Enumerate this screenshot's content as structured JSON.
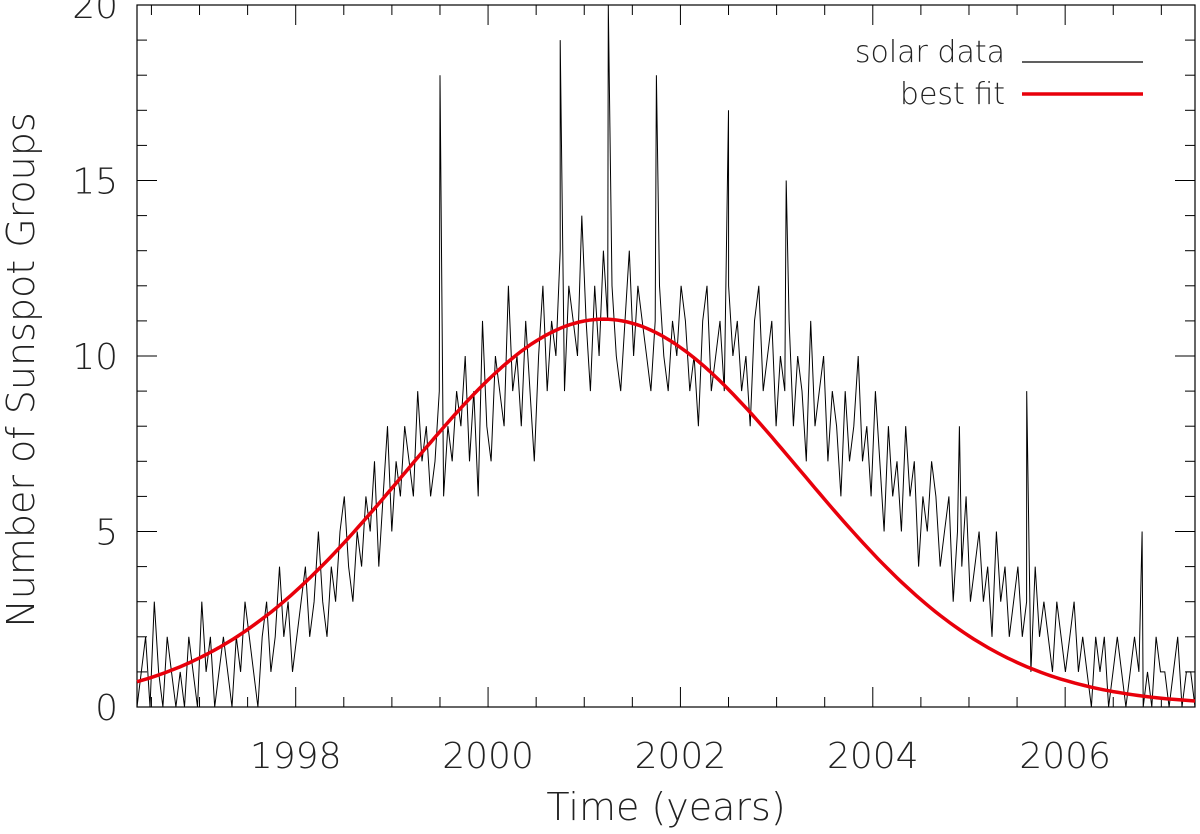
{
  "chart_data": {
    "type": "line",
    "xlabel": "Time (years)",
    "ylabel": "Number of Sunspot Groups",
    "xlim": [
      1996.35,
      2007.35
    ],
    "ylim": [
      0,
      20
    ],
    "x_ticks": [
      1998,
      2000,
      2002,
      2004,
      2006
    ],
    "y_ticks": [
      0,
      5,
      10,
      15,
      20
    ],
    "grid": false,
    "legend_position": "top-right",
    "series": [
      {
        "name": "solar data",
        "style": "thin line",
        "color": "#000000",
        "x_start": 1996.35,
        "x_end": 2007.35,
        "values": [
          0,
          1,
          2,
          0,
          3,
          1,
          0,
          2,
          1,
          0,
          1,
          0,
          2,
          1,
          0,
          3,
          1,
          2,
          0,
          1,
          2,
          1,
          0,
          2,
          1,
          3,
          2,
          1,
          0,
          2,
          3,
          1,
          2,
          4,
          2,
          3,
          1,
          2,
          3,
          4,
          2,
          3,
          5,
          3,
          2,
          4,
          3,
          5,
          6,
          4,
          3,
          5,
          4,
          6,
          5,
          7,
          4,
          6,
          8,
          5,
          7,
          6,
          8,
          7,
          6,
          9,
          7,
          8,
          6,
          7,
          9,
          6,
          8,
          7,
          9,
          8,
          10,
          7,
          9,
          6,
          11,
          8,
          7,
          10,
          9,
          8,
          12,
          9,
          10,
          8,
          11,
          9,
          7,
          10,
          12,
          9,
          11,
          10,
          13,
          9,
          12,
          11,
          10,
          14,
          11,
          9,
          12,
          10,
          13,
          11,
          12,
          10,
          9,
          11,
          13,
          10,
          12,
          11,
          10,
          9,
          11,
          12,
          10,
          9,
          11,
          10,
          12,
          11,
          9,
          10,
          8,
          11,
          12,
          9,
          10,
          11,
          9,
          12,
          10,
          11,
          9,
          10,
          8,
          11,
          12,
          9,
          10,
          11,
          8,
          10,
          9,
          11,
          8,
          10,
          9,
          7,
          11,
          8,
          9,
          10,
          7,
          9,
          8,
          6,
          9,
          7,
          8,
          10,
          7,
          8,
          6,
          9,
          7,
          5,
          8,
          6,
          7,
          5,
          8,
          6,
          7,
          4,
          6,
          5,
          7,
          6,
          4,
          5,
          6,
          3,
          5,
          4,
          6,
          3,
          4,
          5,
          3,
          4,
          2,
          5,
          3,
          4,
          2,
          3,
          4,
          2,
          3,
          1,
          4,
          2,
          3,
          2,
          1,
          3,
          2,
          1,
          2,
          3,
          1,
          2,
          1,
          0,
          2,
          1,
          2,
          0,
          1,
          2,
          1,
          0,
          1,
          2,
          1,
          0,
          1,
          0,
          2,
          1,
          1,
          0,
          1,
          2,
          0,
          1,
          1,
          0
        ],
        "peaks": [
          {
            "x": 2001.25,
            "y": 20
          },
          {
            "x": 2001.75,
            "y": 18
          },
          {
            "x": 1999.5,
            "y": 18
          },
          {
            "x": 2000.75,
            "y": 19
          },
          {
            "x": 2002.5,
            "y": 17
          },
          {
            "x": 2003.1,
            "y": 15
          },
          {
            "x": 2004.9,
            "y": 8
          },
          {
            "x": 2005.6,
            "y": 9
          },
          {
            "x": 2006.8,
            "y": 5
          }
        ]
      },
      {
        "name": "best fit",
        "style": "thick line",
        "color": "#e8000b",
        "model": "gaussian",
        "center": 2001.2,
        "peak": 11.05,
        "sigma": 2.05,
        "offset": 0.05
      }
    ]
  }
}
